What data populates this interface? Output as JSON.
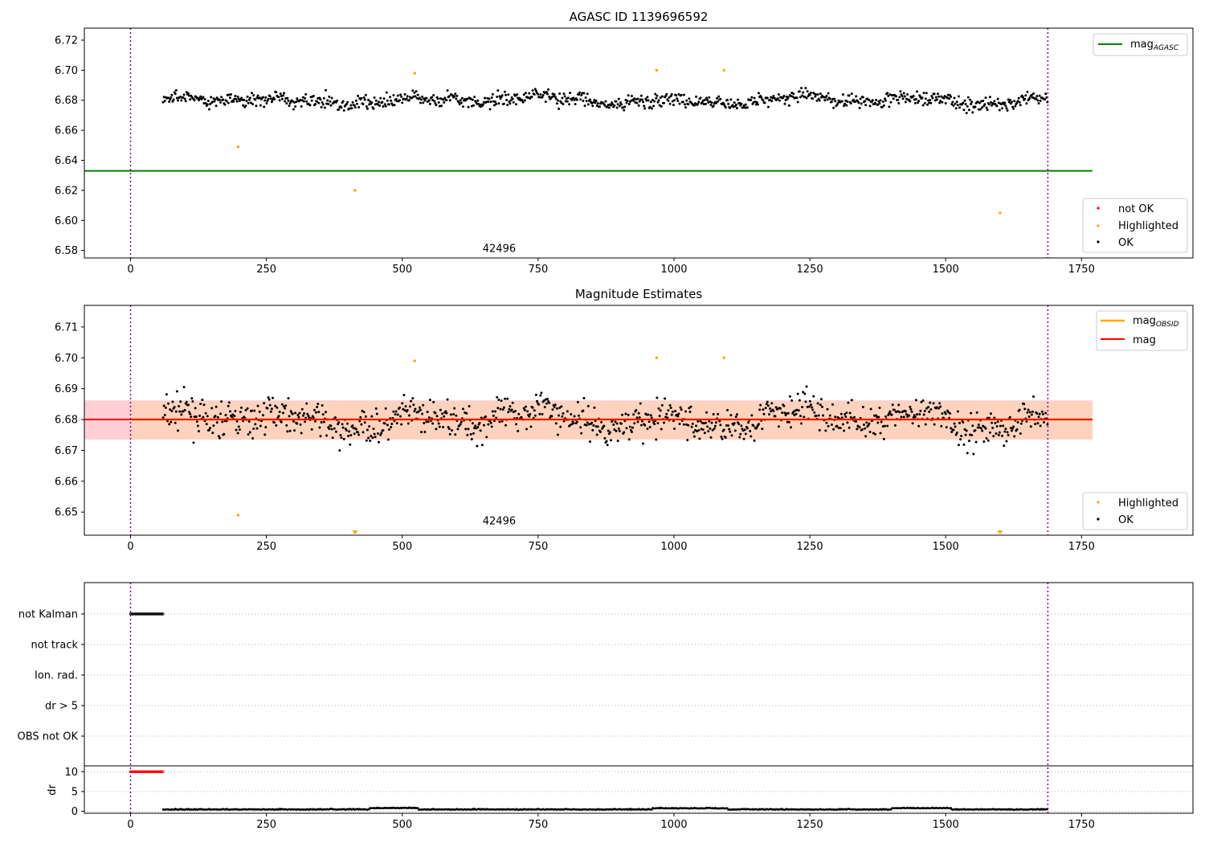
{
  "panels": {
    "top": {
      "title": "AGASC ID 1139696592",
      "obsid_label": "42496",
      "legend_line": {
        "label": "mag",
        "sub": "AGASC"
      },
      "legend_points": [
        "not OK",
        "Highlighted",
        "OK"
      ]
    },
    "middle": {
      "title": "Magnitude Estimates",
      "obsid_label": "42496",
      "legend_lines": [
        {
          "label": "mag",
          "sub": "OBSID"
        },
        {
          "label": "mag",
          "sub": ""
        }
      ],
      "legend_points": [
        "Highlighted",
        "OK"
      ]
    },
    "bottom": {
      "flag_labels": [
        "not Kalman",
        "not track",
        "Ion. rad.",
        "dr > 5",
        "OBS not OK"
      ],
      "dr_label": "dr"
    }
  },
  "colors": {
    "ok": "#000000",
    "highlighted": "#ffa500",
    "not_ok": "#ff0000",
    "agasc_line": "#008000",
    "obsid_line": "#ffa500",
    "mag_line": "#ff0000",
    "band_outer": "#ffcfd4",
    "band_inner": "#fdd3bd",
    "obs_boundary": "#800080",
    "flag_dots": "#000000",
    "dr_flag_dots": "#ff0000"
  },
  "chart_data": [
    {
      "type": "scatter",
      "title": "AGASC ID 1139696592",
      "xlim": [
        -85,
        1955
      ],
      "ylim": [
        6.575,
        6.728
      ],
      "xticks": [
        0,
        250,
        500,
        750,
        1000,
        1250,
        1500,
        1750
      ],
      "yticks": [
        6.58,
        6.6,
        6.62,
        6.64,
        6.66,
        6.68,
        6.7,
        6.72
      ],
      "agasc_mag": 6.633,
      "agasc_line_x": [
        -85,
        1770
      ],
      "obs_boundaries": [
        0,
        1688
      ],
      "ok_series": {
        "x_range": [
          60,
          1688
        ],
        "mean": 6.68,
        "noise": 0.005
      },
      "highlighted_points": [
        [
          198,
          6.649
        ],
        [
          413,
          6.62
        ],
        [
          523,
          6.698
        ],
        [
          968,
          6.7
        ],
        [
          1092,
          6.7
        ],
        [
          1600,
          6.605
        ]
      ],
      "annotations": [
        {
          "text": "42496",
          "x": 844,
          "y": 6.578
        }
      ]
    },
    {
      "type": "scatter",
      "title": "Magnitude Estimates",
      "xlim": [
        -85,
        1955
      ],
      "ylim": [
        6.6425,
        6.717
      ],
      "xticks": [
        0,
        250,
        500,
        750,
        1000,
        1250,
        1500,
        1750
      ],
      "yticks": [
        6.65,
        6.66,
        6.67,
        6.68,
        6.69,
        6.7,
        6.71
      ],
      "mag": 6.68,
      "mag_obsid": 6.68,
      "band_outer": [
        6.6735,
        6.6862
      ],
      "band_inner": [
        6.6738,
        6.6858
      ],
      "band_x": [
        -85,
        1770
      ],
      "obs_boundaries": [
        0,
        1688
      ],
      "ok_series": {
        "x_range": [
          60,
          1688
        ],
        "mean": 6.68,
        "noise": 0.006
      },
      "highlighted_points": [
        [
          198,
          6.649
        ],
        [
          523,
          6.699
        ],
        [
          968,
          6.7
        ],
        [
          1092,
          6.7
        ]
      ],
      "offscale_markers": [
        413,
        1600
      ],
      "annotations": [
        {
          "text": "42496",
          "x": 844,
          "y": 6.6455
        }
      ]
    },
    {
      "type": "scatter",
      "xlim": [
        -85,
        1955
      ],
      "xticks": [
        0,
        250,
        500,
        750,
        1000,
        1250,
        1500,
        1750
      ],
      "flags": [
        "not Kalman",
        "not track",
        "Ion. rad.",
        "dr > 5",
        "OBS not OK"
      ],
      "flag_segments": {
        "not Kalman": [
          [
            0,
            60
          ]
        ]
      },
      "dr_ylim": [
        -0.5,
        11.5
      ],
      "dr_yticks": [
        0,
        5,
        10
      ],
      "dr_flag_segment": [
        0,
        60
      ],
      "dr_flag_value": 10,
      "dr_series": {
        "x_range": [
          60,
          1688
        ],
        "mean": 0.4
      },
      "obs_boundaries": [
        0,
        1688
      ]
    }
  ]
}
